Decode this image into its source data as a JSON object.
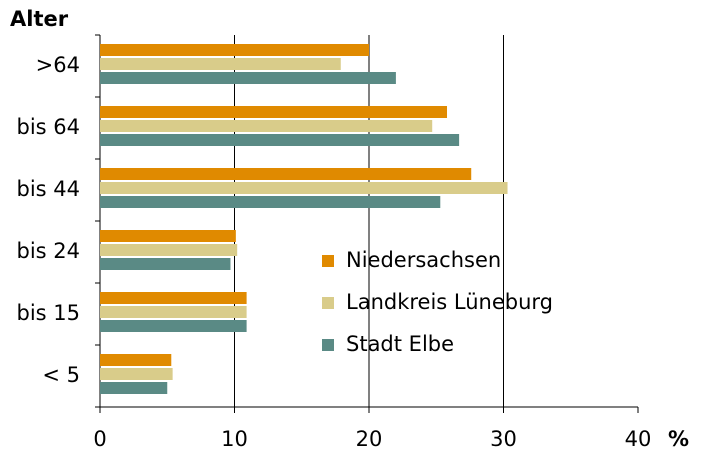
{
  "chart_data": {
    "type": "barh",
    "ylabel": "Alter",
    "xlabel": "%",
    "categories": [
      ">64",
      "bis 64",
      "bis 44",
      "bis 24",
      "bis 15",
      "< 5"
    ],
    "series": [
      {
        "name": "Niedersachsen",
        "color": "#e08a00",
        "values": [
          20,
          25.8,
          27.6,
          10.1,
          10.9,
          5.3
        ]
      },
      {
        "name": "Landkreis Lüneburg",
        "color": "#d9cc8a",
        "values": [
          17.9,
          24.7,
          30.3,
          10.2,
          10.9,
          5.4
        ]
      },
      {
        "name": "Stadt Elbe",
        "color": "#5a8a85",
        "values": [
          22,
          26.7,
          25.3,
          9.7,
          10.9,
          5
        ]
      }
    ],
    "xlim": [
      0,
      40
    ],
    "xticks": [
      0,
      10,
      20,
      30,
      40
    ],
    "grid": true
  }
}
